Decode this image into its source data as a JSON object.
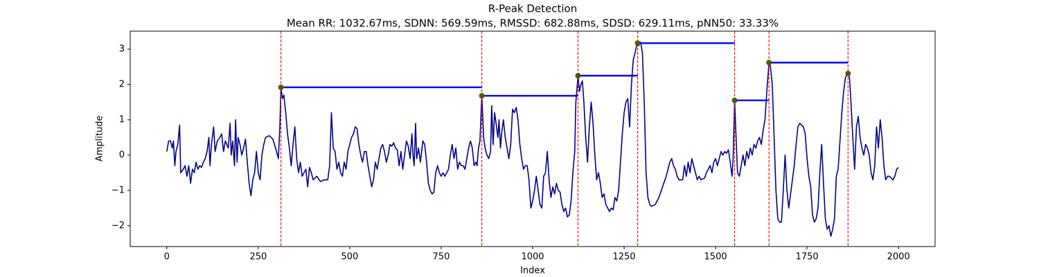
{
  "chart_data": {
    "type": "line",
    "title": "R-Peak Detection",
    "subtitle": "Mean RR: 1032.67ms, SDNN: 569.59ms, RMSSD: 682.88ms, SDSD: 629.11ms, pNN50: 33.33%",
    "xlabel": "Index",
    "ylabel": "Amplitude",
    "xlim": [
      -100,
      2100
    ],
    "ylim": [
      -2.59,
      3.51
    ],
    "xticks": [
      0,
      250,
      500,
      750,
      1000,
      1250,
      1500,
      1750,
      2000
    ],
    "yticks": [
      {
        "value": -2,
        "label": "−2"
      },
      {
        "value": -1,
        "label": "−1"
      },
      0,
      1,
      2,
      3
    ],
    "x": [
      0,
      5,
      10,
      15,
      18,
      22,
      25,
      30,
      35,
      38,
      45,
      50,
      55,
      60,
      65,
      70,
      75,
      80,
      85,
      90,
      95,
      100,
      105,
      110,
      115,
      118,
      122,
      128,
      132,
      138,
      145,
      150,
      155,
      160,
      168,
      173,
      176,
      180,
      185,
      188,
      192,
      195,
      200,
      205,
      210,
      215,
      220,
      225,
      230,
      235,
      240,
      245,
      250,
      255,
      260,
      265,
      270,
      280,
      290,
      300,
      305,
      309,
      312,
      316,
      320,
      325,
      330,
      335,
      340,
      345,
      350,
      355,
      360,
      365,
      370,
      375,
      380,
      385,
      390,
      395,
      400,
      410,
      420,
      430,
      440,
      445,
      450,
      455,
      460,
      465,
      470,
      475,
      480,
      485,
      490,
      495,
      500,
      505,
      510,
      515,
      520,
      525,
      530,
      535,
      540,
      545,
      550,
      560,
      565,
      570,
      575,
      580,
      585,
      590,
      595,
      600,
      605,
      610,
      615,
      620,
      625,
      630,
      635,
      640,
      645,
      650,
      655,
      660,
      665,
      670,
      673,
      676,
      680,
      683,
      688,
      693,
      700,
      705,
      710,
      715,
      720,
      725,
      730,
      735,
      740,
      745,
      750,
      755,
      760,
      765,
      770,
      775,
      780,
      785,
      790,
      795,
      800,
      805,
      810,
      815,
      820,
      825,
      830,
      835,
      840,
      845,
      848,
      852,
      856,
      861,
      866,
      870,
      875,
      880,
      885,
      888,
      892,
      896,
      900,
      905,
      908,
      912,
      915,
      920,
      925,
      930,
      935,
      940,
      945,
      950,
      955,
      960,
      965,
      970,
      975,
      980,
      985,
      990,
      995,
      1000,
      1005,
      1010,
      1015,
      1020,
      1025,
      1030,
      1035,
      1040,
      1045,
      1050,
      1055,
      1060,
      1065,
      1070,
      1075,
      1080,
      1085,
      1090,
      1095,
      1100,
      1105,
      1110,
      1115,
      1118,
      1124,
      1128,
      1132,
      1136,
      1140,
      1145,
      1150,
      1155,
      1160,
      1165,
      1170,
      1175,
      1180,
      1185,
      1190,
      1195,
      1200,
      1205,
      1210,
      1215,
      1220,
      1225,
      1230,
      1235,
      1240,
      1245,
      1250,
      1255,
      1260,
      1265,
      1270,
      1275,
      1280,
      1284,
      1287,
      1290,
      1295,
      1300,
      1305,
      1310,
      1315,
      1320,
      1325,
      1335,
      1345,
      1355,
      1365,
      1370,
      1375,
      1380,
      1385,
      1390,
      1395,
      1400,
      1410,
      1415,
      1420,
      1425,
      1430,
      1435,
      1440,
      1445,
      1450,
      1455,
      1460,
      1470,
      1475,
      1480,
      1485,
      1490,
      1495,
      1500,
      1505,
      1510,
      1515,
      1520,
      1525,
      1530,
      1535,
      1540,
      1545,
      1548,
      1552,
      1556,
      1560,
      1565,
      1570,
      1575,
      1580,
      1585,
      1590,
      1595,
      1600,
      1605,
      1610,
      1615,
      1620,
      1625,
      1630,
      1635,
      1640,
      1646,
      1650,
      1655,
      1660,
      1665,
      1670,
      1675,
      1680,
      1685,
      1690,
      1695,
      1700,
      1705,
      1710,
      1715,
      1720,
      1725,
      1730,
      1740,
      1745,
      1750,
      1755,
      1760,
      1765,
      1770,
      1775,
      1780,
      1785,
      1790,
      1795,
      1800,
      1805,
      1810,
      1815,
      1820,
      1825,
      1830,
      1835,
      1840,
      1845,
      1850,
      1855,
      1862,
      1866,
      1870,
      1875,
      1880,
      1885,
      1890,
      1895,
      1900,
      1905,
      1910,
      1915,
      1920,
      1925,
      1930,
      1935,
      1940,
      1945,
      1950,
      1955,
      1960,
      1965,
      1970,
      1975,
      1980,
      1985,
      1990,
      1995,
      2000
    ],
    "values": [
      0.1,
      0.4,
      0.4,
      0.2,
      0.4,
      -0.3,
      0.1,
      0.3,
      0.85,
      -0.5,
      -0.4,
      -0.3,
      -0.6,
      -0.3,
      -0.8,
      -0.4,
      -0.5,
      -0.2,
      -0.4,
      -0.3,
      -0.35,
      -0.2,
      -0.1,
      0.1,
      0.5,
      -0.3,
      0.3,
      0.8,
      0.1,
      0.4,
      0.5,
      0.6,
      0.1,
      0.4,
      0.2,
      0.9,
      0.0,
      0.4,
      -0.3,
      1.0,
      -0.2,
      0.5,
      0.3,
      0.0,
      0.2,
      0.45,
      -0.2,
      -0.8,
      -1.15,
      -0.7,
      -0.5,
      0.1,
      -0.5,
      -0.7,
      0.0,
      0.3,
      0.5,
      0.55,
      0.45,
      0.1,
      -0.1,
      0.8,
      1.92,
      1.6,
      1.7,
      1.2,
      0.6,
      0.2,
      -0.3,
      0.3,
      0.8,
      -0.1,
      -0.5,
      -0.2,
      -0.6,
      -0.5,
      -0.4,
      -0.9,
      -0.35,
      -0.5,
      -0.7,
      -0.6,
      -0.75,
      -0.7,
      -0.7,
      -0.3,
      1.2,
      0.2,
      0.1,
      -0.4,
      -0.2,
      -0.5,
      -0.6,
      -0.2,
      -0.4,
      0.1,
      0.3,
      0.5,
      0.6,
      0.8,
      0.75,
      0.3,
      0.0,
      -0.2,
      0.1,
      0.1,
      -0.3,
      -0.9,
      -0.7,
      -0.2,
      -0.4,
      -0.1,
      0.2,
      0.3,
      0.1,
      -0.2,
      0.0,
      0.3,
      0.25,
      0.35,
      0.2,
      0.15,
      -0.3,
      0.1,
      -0.4,
      0.0,
      0.4,
      0.25,
      -0.1,
      0.6,
      0.0,
      -0.3,
      0.9,
      -0.1,
      0.2,
      -0.2,
      0.4,
      0.3,
      -0.2,
      -0.8,
      -1.0,
      -1.1,
      -1.05,
      -0.5,
      -0.3,
      -0.5,
      -0.6,
      -0.5,
      -0.6,
      -0.5,
      -0.4,
      0.0,
      0.3,
      -0.1,
      0.2,
      -0.4,
      -0.2,
      -0.3,
      -0.3,
      -0.4,
      -0.1,
      0.2,
      0.4,
      0.2,
      -0.3,
      -0.2,
      -0.3,
      0.2,
      0.4,
      1.68,
      0.5,
      0.2,
      0.0,
      -0.1,
      0.1,
      1.4,
      0.3,
      1.2,
      0.9,
      0.5,
      1.0,
      0.2,
      0.6,
      1.0,
      0.5,
      0.2,
      -0.1,
      0.3,
      1.3,
      1.2,
      1.35,
      1.0,
      0.3,
      -0.1,
      -0.4,
      -0.3,
      -0.3,
      -0.7,
      -1.5,
      -1.3,
      -1.0,
      -0.6,
      -1.0,
      -1.4,
      -1.5,
      -0.6,
      -0.5,
      0.1,
      -0.7,
      -1.2,
      -0.9,
      -1.1,
      -0.8,
      -1.0,
      -1.05,
      -1.4,
      -1.6,
      -1.5,
      -1.75,
      -1.7,
      -1.3,
      -0.5,
      0.1,
      1.5,
      2.25,
      1.8,
      2.0,
      2.1,
      1.5,
      0.5,
      -0.2,
      0.8,
      1.5,
      0.9,
      0.0,
      -0.7,
      -0.5,
      -0.8,
      -1.2,
      -1.1,
      -1.4,
      -1.5,
      -1.6,
      -1.5,
      -1.55,
      -1.2,
      -1.3,
      -1.0,
      -0.2,
      0.6,
      1.2,
      1.5,
      1.6,
      0.8,
      2.0,
      2.7,
      2.9,
      3.1,
      3.17,
      3.1,
      3.2,
      2.9,
      1.5,
      -0.5,
      -1.2,
      -1.4,
      -1.45,
      -1.4,
      -1.2,
      -0.9,
      -0.6,
      -0.4,
      -0.2,
      -0.1,
      -0.3,
      -0.4,
      -0.6,
      -0.7,
      -0.7,
      -0.3,
      -0.6,
      -0.2,
      -0.5,
      -0.1,
      -0.3,
      -0.5,
      -0.7,
      -0.6,
      -0.7,
      -0.65,
      -0.5,
      -0.4,
      -0.3,
      -0.5,
      -0.2,
      -0.1,
      -0.3,
      -0.1,
      0.1,
      0.0,
      0.1,
      0.05,
      0.15,
      -0.2,
      -0.6,
      -0.1,
      1.55,
      0.5,
      -0.5,
      -0.6,
      -0.3,
      0.0,
      -0.3,
      0.1,
      -0.1,
      0.2,
      0.0,
      0.3,
      0.2,
      0.4,
      0.5,
      0.3,
      0.7,
      1.0,
      1.8,
      2.62,
      2.5,
      2.0,
      0.5,
      -1.0,
      -1.8,
      -1.9,
      -1.9,
      -1.0,
      0.0,
      -1.0,
      -1.5,
      -1.1,
      -0.7,
      -0.3,
      0.3,
      0.8,
      0.9,
      0.8,
      0.6,
      -0.1,
      -0.6,
      -0.9,
      -1.7,
      -1.9,
      -1.8,
      -1.5,
      -0.5,
      0.3,
      -0.8,
      -1.8,
      -2.1,
      -2.0,
      -2.3,
      -2.1,
      -1.8,
      -0.6,
      -0.4,
      0.4,
      1.2,
      1.8,
      2.2,
      2.31,
      2.2,
      1.5,
      0.5,
      -0.4,
      0.8,
      1.1,
      0.5,
      0.2,
      0.0,
      0.3,
      0.2,
      0.0,
      -0.5,
      -0.7,
      -0.3,
      0.8,
      0.2,
      1.0,
      0.5,
      -0.3,
      -0.7,
      -0.6,
      -0.6,
      -0.65,
      -0.7,
      -0.6,
      -0.4,
      -0.35
    ],
    "color": "#00008b",
    "peaks": {
      "x": [
        312,
        861,
        1124,
        1287,
        1552,
        1646,
        1862
      ],
      "values": [
        1.92,
        1.68,
        2.25,
        3.17,
        1.55,
        2.62,
        2.31
      ],
      "color": "#008000",
      "edge_color": "#ff0000"
    },
    "peak_line_color": "#ff0000",
    "rr_line_color": "#0000ff"
  }
}
